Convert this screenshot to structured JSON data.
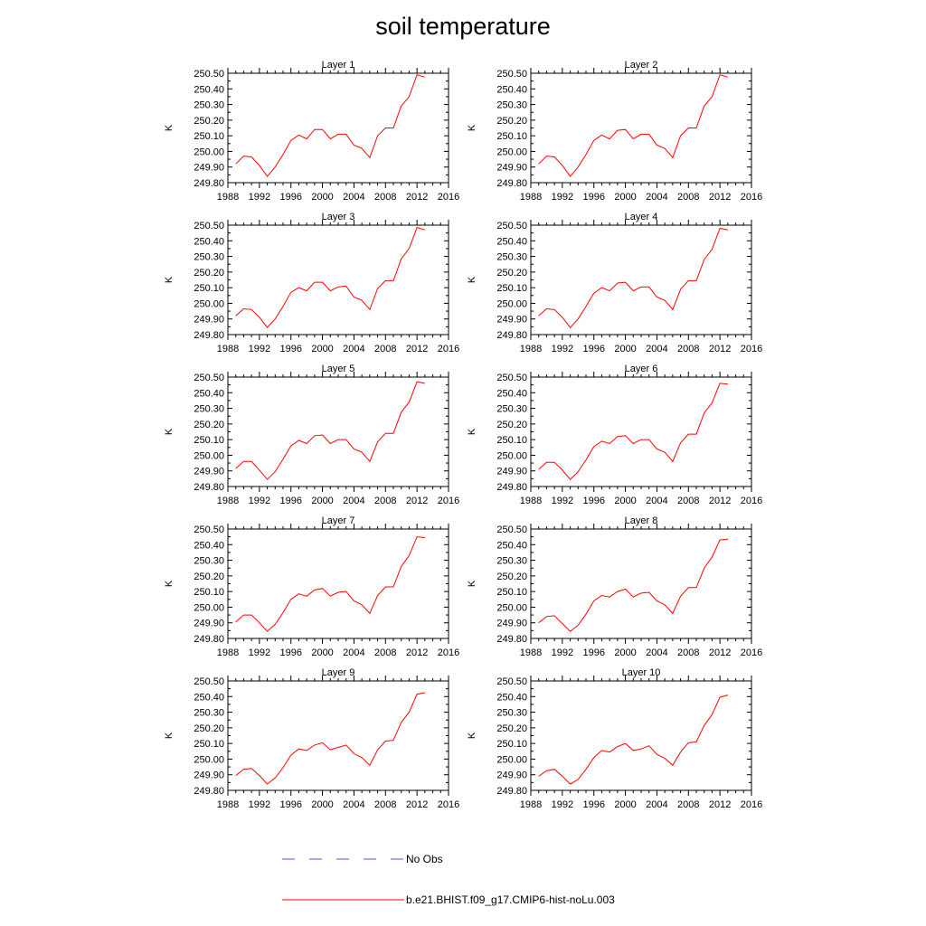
{
  "title": "soil temperature",
  "colors": {
    "model": "#ff0000",
    "obs": "#5555cc",
    "axis": "#000000"
  },
  "legend": [
    {
      "label": "No Obs",
      "style": "dashed",
      "color": "#5555cc"
    },
    {
      "label": "b.e21.BHIST.f09_g17.CMIP6-hist-noLu.003",
      "style": "solid",
      "color": "#ff0000"
    }
  ],
  "chart_data": [
    {
      "type": "line",
      "title": "Layer 1",
      "ylabel": "K",
      "xlabel": "",
      "xlim": [
        1988,
        2016
      ],
      "ylim": [
        249.8,
        250.5
      ],
      "xticks": [
        "1988",
        "1992",
        "1996",
        "2000",
        "2004",
        "2008",
        "2012",
        "2016"
      ],
      "yticks": [
        "249.80",
        "249.90",
        "250.00",
        "250.10",
        "250.20",
        "250.30",
        "250.40",
        "250.50"
      ],
      "x": [
        1989,
        1990,
        1991,
        1992,
        1993,
        1994,
        1995,
        1996,
        1997,
        1998,
        1999,
        2000,
        2001,
        2002,
        2003,
        2004,
        2005,
        2006,
        2007,
        2008,
        2009,
        2010,
        2011,
        2012,
        2013
      ],
      "series": [
        {
          "name": "b.e21.BHIST.f09_g17.CMIP6-hist-noLu.003",
          "values": [
            249.92,
            249.97,
            249.965,
            249.91,
            249.84,
            249.9,
            249.98,
            250.07,
            250.105,
            250.08,
            250.14,
            250.14,
            250.08,
            250.11,
            250.11,
            250.04,
            250.02,
            249.96,
            250.1,
            250.15,
            250.15,
            250.29,
            250.35,
            250.49,
            250.475
          ]
        }
      ]
    },
    {
      "type": "line",
      "title": "Layer 2",
      "ylabel": "K",
      "xlabel": "",
      "xlim": [
        1988,
        2016
      ],
      "ylim": [
        249.8,
        250.5
      ],
      "xticks": [
        "1988",
        "1992",
        "1996",
        "2000",
        "2004",
        "2008",
        "2012",
        "2016"
      ],
      "yticks": [
        "249.80",
        "249.90",
        "250.00",
        "250.10",
        "250.20",
        "250.30",
        "250.40",
        "250.50"
      ],
      "x": [
        1989,
        1990,
        1991,
        1992,
        1993,
        1994,
        1995,
        1996,
        1997,
        1998,
        1999,
        2000,
        2001,
        2002,
        2003,
        2004,
        2005,
        2006,
        2007,
        2008,
        2009,
        2010,
        2011,
        2012,
        2013
      ],
      "series": [
        {
          "name": "b.e21.BHIST.f09_g17.CMIP6-hist-noLu.003",
          "values": [
            249.92,
            249.97,
            249.965,
            249.91,
            249.84,
            249.9,
            249.98,
            250.07,
            250.105,
            250.08,
            250.135,
            250.14,
            250.08,
            250.11,
            250.11,
            250.04,
            250.02,
            249.96,
            250.1,
            250.15,
            250.15,
            250.29,
            250.35,
            250.49,
            250.475
          ]
        }
      ]
    },
    {
      "type": "line",
      "title": "Layer 3",
      "ylabel": "K",
      "xlabel": "",
      "xlim": [
        1988,
        2016
      ],
      "ylim": [
        249.8,
        250.5
      ],
      "xticks": [
        "1988",
        "1992",
        "1996",
        "2000",
        "2004",
        "2008",
        "2012",
        "2016"
      ],
      "yticks": [
        "249.80",
        "249.90",
        "250.00",
        "250.10",
        "250.20",
        "250.30",
        "250.40",
        "250.50"
      ],
      "x": [
        1989,
        1990,
        1991,
        1992,
        1993,
        1994,
        1995,
        1996,
        1997,
        1998,
        1999,
        2000,
        2001,
        2002,
        2003,
        2004,
        2005,
        2006,
        2007,
        2008,
        2009,
        2010,
        2011,
        2012,
        2013
      ],
      "series": [
        {
          "name": "b.e21.BHIST.f09_g17.CMIP6-hist-noLu.003",
          "values": [
            249.92,
            249.965,
            249.96,
            249.91,
            249.845,
            249.9,
            249.98,
            250.07,
            250.1,
            250.08,
            250.135,
            250.135,
            250.08,
            250.105,
            250.11,
            250.04,
            250.02,
            249.96,
            250.095,
            250.145,
            250.145,
            250.285,
            250.35,
            250.485,
            250.47
          ]
        }
      ]
    },
    {
      "type": "line",
      "title": "Layer 4",
      "ylabel": "K",
      "xlabel": "",
      "xlim": [
        1988,
        2016
      ],
      "ylim": [
        249.8,
        250.5
      ],
      "xticks": [
        "1988",
        "1992",
        "1996",
        "2000",
        "2004",
        "2008",
        "2012",
        "2016"
      ],
      "yticks": [
        "249.80",
        "249.90",
        "250.00",
        "250.10",
        "250.20",
        "250.30",
        "250.40",
        "250.50"
      ],
      "x": [
        1989,
        1990,
        1991,
        1992,
        1993,
        1994,
        1995,
        1996,
        1997,
        1998,
        1999,
        2000,
        2001,
        2002,
        2003,
        2004,
        2005,
        2006,
        2007,
        2008,
        2009,
        2010,
        2011,
        2012,
        2013
      ],
      "series": [
        {
          "name": "b.e21.BHIST.f09_g17.CMIP6-hist-noLu.003",
          "values": [
            249.92,
            249.965,
            249.96,
            249.91,
            249.845,
            249.9,
            249.98,
            250.065,
            250.1,
            250.08,
            250.13,
            250.135,
            250.08,
            250.105,
            250.105,
            250.04,
            250.02,
            249.96,
            250.09,
            250.145,
            250.145,
            250.28,
            250.345,
            250.48,
            250.47
          ]
        }
      ]
    },
    {
      "type": "line",
      "title": "Layer 5",
      "ylabel": "K",
      "xlabel": "",
      "xlim": [
        1988,
        2016
      ],
      "ylim": [
        249.8,
        250.5
      ],
      "xticks": [
        "1988",
        "1992",
        "1996",
        "2000",
        "2004",
        "2008",
        "2012",
        "2016"
      ],
      "yticks": [
        "249.80",
        "249.90",
        "250.00",
        "250.10",
        "250.20",
        "250.30",
        "250.40",
        "250.50"
      ],
      "x": [
        1989,
        1990,
        1991,
        1992,
        1993,
        1994,
        1995,
        1996,
        1997,
        1998,
        1999,
        2000,
        2001,
        2002,
        2003,
        2004,
        2005,
        2006,
        2007,
        2008,
        2009,
        2010,
        2011,
        2012,
        2013
      ],
      "series": [
        {
          "name": "b.e21.BHIST.f09_g17.CMIP6-hist-noLu.003",
          "values": [
            249.915,
            249.96,
            249.96,
            249.905,
            249.845,
            249.895,
            249.975,
            250.06,
            250.095,
            250.075,
            250.125,
            250.13,
            250.075,
            250.1,
            250.1,
            250.04,
            250.02,
            249.96,
            250.085,
            250.14,
            250.14,
            250.275,
            250.34,
            250.47,
            250.46
          ]
        }
      ]
    },
    {
      "type": "line",
      "title": "Layer 6",
      "ylabel": "K",
      "xlabel": "",
      "xlim": [
        1988,
        2016
      ],
      "ylim": [
        249.8,
        250.5
      ],
      "xticks": [
        "1988",
        "1992",
        "1996",
        "2000",
        "2004",
        "2008",
        "2012",
        "2016"
      ],
      "yticks": [
        "249.80",
        "249.90",
        "250.00",
        "250.10",
        "250.20",
        "250.30",
        "250.40",
        "250.50"
      ],
      "x": [
        1989,
        1990,
        1991,
        1992,
        1993,
        1994,
        1995,
        1996,
        1997,
        1998,
        1999,
        2000,
        2001,
        2002,
        2003,
        2004,
        2005,
        2006,
        2007,
        2008,
        2009,
        2010,
        2011,
        2012,
        2013
      ],
      "series": [
        {
          "name": "b.e21.BHIST.f09_g17.CMIP6-hist-noLu.003",
          "values": [
            249.91,
            249.955,
            249.955,
            249.905,
            249.845,
            249.895,
            249.97,
            250.055,
            250.09,
            250.075,
            250.12,
            250.125,
            250.075,
            250.1,
            250.1,
            250.04,
            250.02,
            249.96,
            250.08,
            250.135,
            250.135,
            250.27,
            250.335,
            250.46,
            250.455
          ]
        }
      ]
    },
    {
      "type": "line",
      "title": "Layer 7",
      "ylabel": "K",
      "xlabel": "",
      "xlim": [
        1988,
        2016
      ],
      "ylim": [
        249.8,
        250.5
      ],
      "xticks": [
        "1988",
        "1992",
        "1996",
        "2000",
        "2004",
        "2008",
        "2012",
        "2016"
      ],
      "yticks": [
        "249.80",
        "249.90",
        "250.00",
        "250.10",
        "250.20",
        "250.30",
        "250.40",
        "250.50"
      ],
      "x": [
        1989,
        1990,
        1991,
        1992,
        1993,
        1994,
        1995,
        1996,
        1997,
        1998,
        1999,
        2000,
        2001,
        2002,
        2003,
        2004,
        2005,
        2006,
        2007,
        2008,
        2009,
        2010,
        2011,
        2012,
        2013
      ],
      "series": [
        {
          "name": "b.e21.BHIST.f09_g17.CMIP6-hist-noLu.003",
          "values": [
            249.905,
            249.95,
            249.95,
            249.9,
            249.845,
            249.89,
            249.965,
            250.05,
            250.085,
            250.07,
            250.11,
            250.12,
            250.07,
            250.095,
            250.1,
            250.04,
            250.015,
            249.96,
            250.075,
            250.13,
            250.13,
            250.26,
            250.33,
            250.45,
            250.445
          ]
        }
      ]
    },
    {
      "type": "line",
      "title": "Layer 8",
      "ylabel": "K",
      "xlabel": "",
      "xlim": [
        1988,
        2016
      ],
      "ylim": [
        249.8,
        250.5
      ],
      "xticks": [
        "1988",
        "1992",
        "1996",
        "2000",
        "2004",
        "2008",
        "2012",
        "2016"
      ],
      "yticks": [
        "249.80",
        "249.90",
        "250.00",
        "250.10",
        "250.20",
        "250.30",
        "250.40",
        "250.50"
      ],
      "x": [
        1989,
        1990,
        1991,
        1992,
        1993,
        1994,
        1995,
        1996,
        1997,
        1998,
        1999,
        2000,
        2001,
        2002,
        2003,
        2004,
        2005,
        2006,
        2007,
        2008,
        2009,
        2010,
        2011,
        2012,
        2013
      ],
      "series": [
        {
          "name": "b.e21.BHIST.f09_g17.CMIP6-hist-noLu.003",
          "values": [
            249.9,
            249.94,
            249.945,
            249.895,
            249.845,
            249.885,
            249.955,
            250.04,
            250.075,
            250.065,
            250.1,
            250.115,
            250.065,
            250.09,
            250.095,
            250.04,
            250.015,
            249.96,
            250.07,
            250.125,
            250.125,
            250.25,
            250.32,
            250.43,
            250.435
          ]
        }
      ]
    },
    {
      "type": "line",
      "title": "Layer 9",
      "ylabel": "K",
      "xlabel": "",
      "xlim": [
        1988,
        2016
      ],
      "ylim": [
        249.8,
        250.5
      ],
      "xticks": [
        "1988",
        "1992",
        "1996",
        "2000",
        "2004",
        "2008",
        "2012",
        "2016"
      ],
      "yticks": [
        "249.80",
        "249.90",
        "250.00",
        "250.10",
        "250.20",
        "250.30",
        "250.40",
        "250.50"
      ],
      "x": [
        1989,
        1990,
        1991,
        1992,
        1993,
        1994,
        1995,
        1996,
        1997,
        1998,
        1999,
        2000,
        2001,
        2002,
        2003,
        2004,
        2005,
        2006,
        2007,
        2008,
        2009,
        2010,
        2011,
        2012,
        2013
      ],
      "series": [
        {
          "name": "b.e21.BHIST.f09_g17.CMIP6-hist-noLu.003",
          "values": [
            249.895,
            249.935,
            249.94,
            249.895,
            249.84,
            249.88,
            249.945,
            250.025,
            250.065,
            250.055,
            250.09,
            250.105,
            250.06,
            250.075,
            250.09,
            250.035,
            250.01,
            249.96,
            250.06,
            250.115,
            250.12,
            250.235,
            250.3,
            250.415,
            250.425
          ]
        }
      ]
    },
    {
      "type": "line",
      "title": "Layer 10",
      "ylabel": "K",
      "xlabel": "",
      "xlim": [
        1988,
        2016
      ],
      "ylim": [
        249.8,
        250.5
      ],
      "xticks": [
        "1988",
        "1992",
        "1996",
        "2000",
        "2004",
        "2008",
        "2012",
        "2016"
      ],
      "yticks": [
        "249.80",
        "249.90",
        "250.00",
        "250.10",
        "250.20",
        "250.30",
        "250.40",
        "250.50"
      ],
      "x": [
        1989,
        1990,
        1991,
        1992,
        1993,
        1994,
        1995,
        1996,
        1997,
        1998,
        1999,
        2000,
        2001,
        2002,
        2003,
        2004,
        2005,
        2006,
        2007,
        2008,
        2009,
        2010,
        2011,
        2012,
        2013
      ],
      "series": [
        {
          "name": "b.e21.BHIST.f09_g17.CMIP6-hist-noLu.003",
          "values": [
            249.89,
            249.925,
            249.935,
            249.89,
            249.84,
            249.87,
            249.935,
            250.01,
            250.055,
            250.045,
            250.08,
            250.1,
            250.055,
            250.065,
            250.085,
            250.03,
            250.005,
            249.96,
            250.045,
            250.105,
            250.11,
            250.215,
            250.285,
            250.395,
            250.41
          ]
        }
      ]
    }
  ]
}
